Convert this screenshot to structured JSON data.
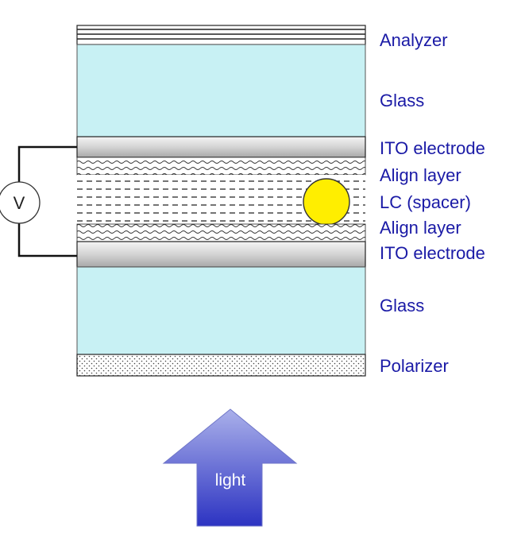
{
  "labels": {
    "analyzer": "Analyzer",
    "glass_top": "Glass",
    "ito_top": "ITO electrode",
    "align_top": "Align layer",
    "lc": "LC (spacer)",
    "align_bottom": "Align layer",
    "ito_bottom": "ITO electrode",
    "glass_bottom": "Glass",
    "polarizer": "Polarizer"
  },
  "voltmeter": {
    "label": "V"
  },
  "light_arrow": {
    "label": "light"
  },
  "colors": {
    "label_text": "#1a1aa6",
    "glass": "#c8f1f4",
    "electrode": "#d0d0d0",
    "spacer": "#ffee00",
    "arrow_top": "#a9afe8",
    "arrow_bottom": "#2f36c4"
  }
}
